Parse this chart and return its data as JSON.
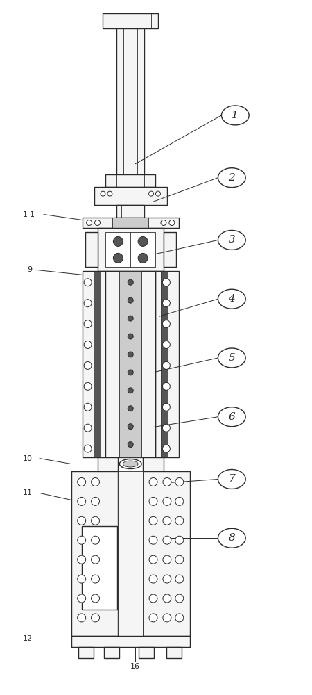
{
  "bg_color": "#ffffff",
  "line_color": "#2a2a2a",
  "fill_white": "#ffffff",
  "fill_light": "#f5f5f5",
  "fill_mid": "#cccccc",
  "fill_dark": "#555555",
  "fill_black": "#111111"
}
